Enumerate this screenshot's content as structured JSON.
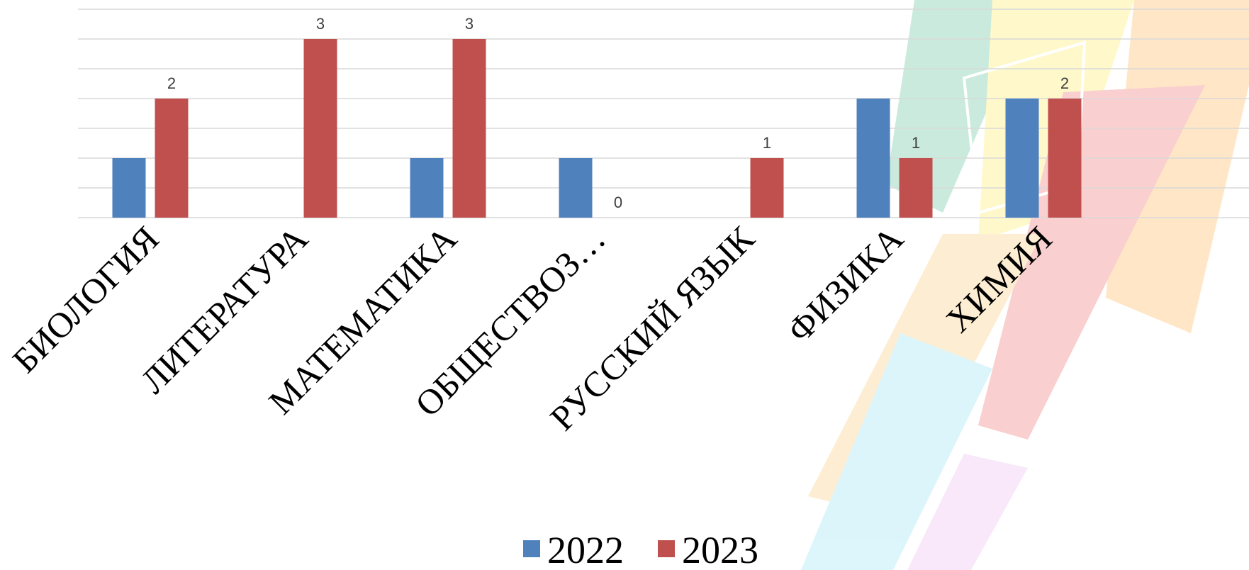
{
  "chart_data": {
    "type": "bar",
    "categories": [
      "БИОЛОГИЯ",
      "ЛИТЕРАТУРА",
      "МАТЕМАТИКА",
      "ОБЩЕСТВОЗ…",
      "РУССКИЙ ЯЗЫК",
      "ФИЗИКА",
      "ХИМИЯ"
    ],
    "series": [
      {
        "name": "2022",
        "values": [
          1,
          null,
          1,
          1,
          null,
          2,
          2
        ],
        "color": "#4F81BD"
      },
      {
        "name": "2023",
        "values": [
          2,
          3,
          3,
          0,
          1,
          1,
          2
        ],
        "color": "#C0504D"
      }
    ],
    "data_labels_series": "2023",
    "ylim": [
      0,
      3.5
    ],
    "grid": true,
    "legend": "bottom",
    "title": "",
    "xlabel": "",
    "ylabel": ""
  }
}
